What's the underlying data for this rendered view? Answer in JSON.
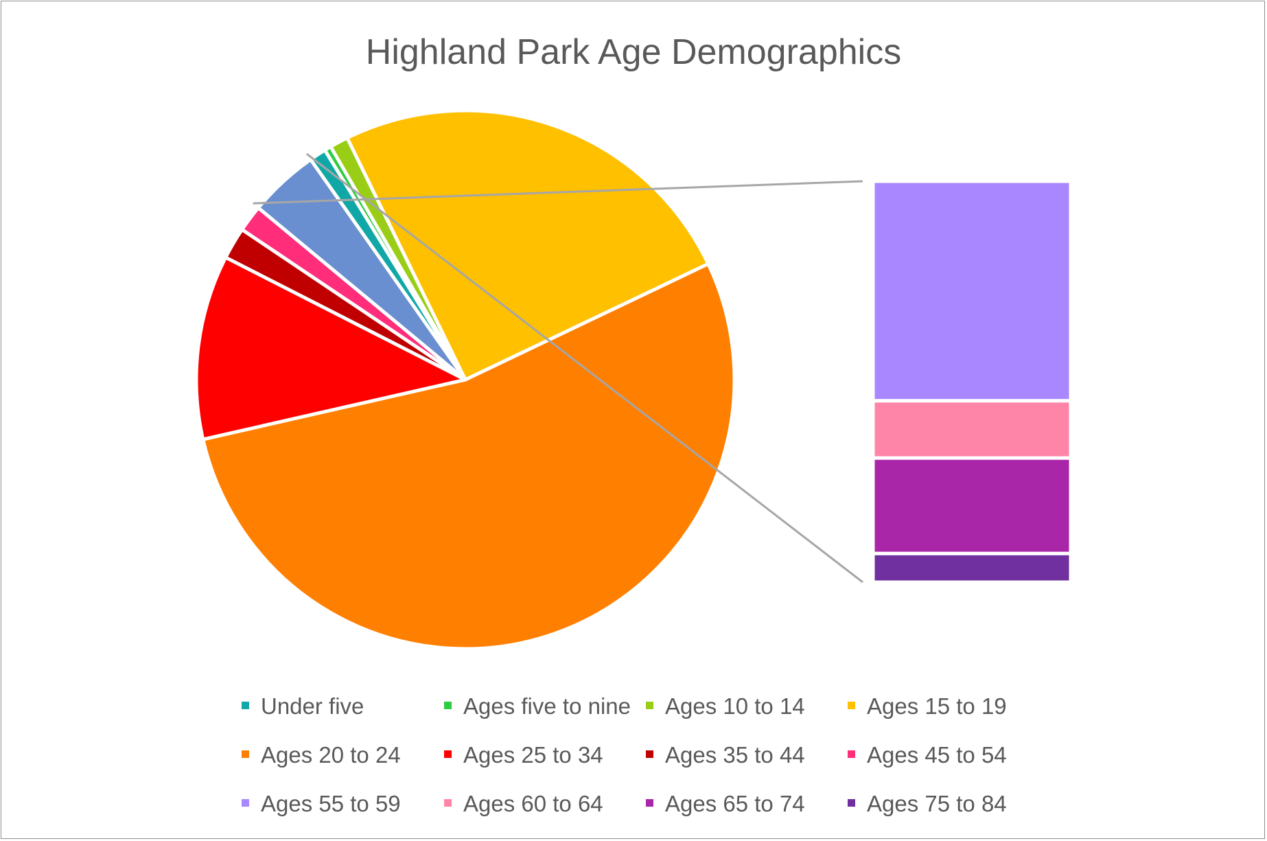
{
  "chart_data": {
    "type": "bar-of-pie",
    "title": "Highland Park Age Demographics",
    "legend_position": "bottom",
    "categories": [
      "Under five",
      "Ages five to nine",
      "Ages 10 to 14",
      "Ages 15 to 19",
      "Ages 20 to 24",
      "Ages 25 to 34",
      "Ages 35 to 44",
      "Ages 45 to 54",
      "Ages 55 to 59",
      "Ages 60 to 64",
      "Ages 65 to 74",
      "Ages 75 to 84"
    ],
    "values": [
      1.0,
      0.4,
      1.1,
      25.0,
      53.2,
      11.0,
      1.9,
      1.6,
      2.3,
      0.6,
      1.0,
      0.3
    ],
    "colors": [
      "#12A7A7",
      "#2ECC40",
      "#9ACD16",
      "#FFC000",
      "#FF7F00",
      "#FF0000",
      "#C00000",
      "#FF2D7A",
      "#A987FF",
      "#FF85A8",
      "#AA26A9",
      "#7030A0"
    ],
    "pie_order": [
      4,
      5,
      6,
      7,
      "other",
      0,
      1,
      2,
      3
    ],
    "secondary_categories": [
      "Ages 55 to 59",
      "Ages 60 to 64",
      "Ages 65 to 74",
      "Ages 75 to 84"
    ],
    "other_color": "#6A8FD0"
  }
}
